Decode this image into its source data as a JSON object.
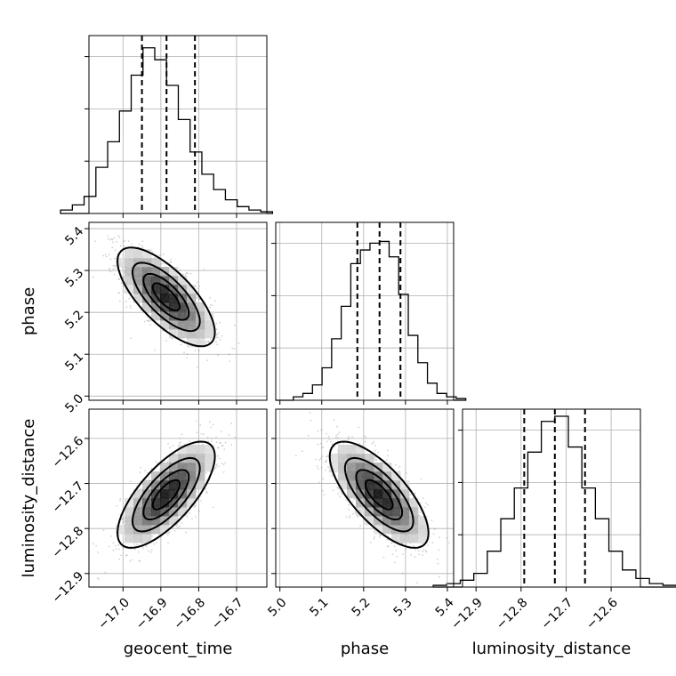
{
  "chart_data": {
    "type": "corner",
    "parameters": [
      "geocent_time",
      "phase",
      "luminosity_distance"
    ],
    "ranges": [
      [
        -17.09,
        -16.62
      ],
      [
        4.99,
        5.415
      ],
      [
        -12.93,
        -12.535
      ]
    ],
    "ticks": [
      [
        -17.0,
        -16.9,
        -16.8,
        -16.7
      ],
      [
        5.0,
        5.1,
        5.2,
        5.3,
        5.4
      ],
      [
        -12.9,
        -12.8,
        -12.7,
        -12.6
      ]
    ],
    "tick_labels": [
      [
        "−17.0",
        "−16.9",
        "−16.8",
        "−16.7"
      ],
      [
        "5.0",
        "5.1",
        "5.2",
        "5.3",
        "5.4"
      ],
      [
        "−12.9",
        "−12.8",
        "−12.7",
        "−12.6"
      ]
    ],
    "quantiles": [
      [
        -16.95,
        -16.885,
        -16.81
      ],
      [
        5.185,
        5.238,
        5.288
      ],
      [
        -12.793,
        -12.725,
        -12.658
      ]
    ],
    "histograms": [
      {
        "counts": [
          0.02,
          0.05,
          0.1,
          0.27,
          0.42,
          0.6,
          0.81,
          0.97,
          0.9,
          0.75,
          0.55,
          0.36,
          0.23,
          0.14,
          0.08,
          0.04,
          0.02,
          0.01
        ]
      },
      {
        "counts": [
          0.02,
          0.04,
          0.09,
          0.19,
          0.36,
          0.55,
          0.8,
          0.88,
          0.92,
          0.93,
          0.84,
          0.62,
          0.38,
          0.22,
          0.1,
          0.04,
          0.02,
          0.01
        ]
      },
      {
        "counts": [
          0.01,
          0.02,
          0.04,
          0.08,
          0.21,
          0.4,
          0.58,
          0.79,
          0.97,
          1.0,
          0.82,
          0.58,
          0.4,
          0.21,
          0.1,
          0.05,
          0.02,
          0.01
        ]
      }
    ],
    "pairs": [
      {
        "x": 0,
        "y": 1,
        "mean": [
          -16.886,
          5.237
        ],
        "std": [
          0.06,
          0.055
        ],
        "rho": -0.72
      },
      {
        "x": 0,
        "y": 2,
        "mean": [
          -16.886,
          -12.725
        ],
        "std": [
          0.06,
          0.055
        ],
        "rho": 0.72
      },
      {
        "x": 1,
        "y": 2,
        "mean": [
          5.237,
          -12.725
        ],
        "std": [
          0.055,
          0.055
        ],
        "rho": -0.72
      }
    ],
    "grid": true,
    "colors": {
      "line": "#000000",
      "quantile": "#000000",
      "grid": "#b0b0b0",
      "points": "#7f7f7f"
    }
  }
}
